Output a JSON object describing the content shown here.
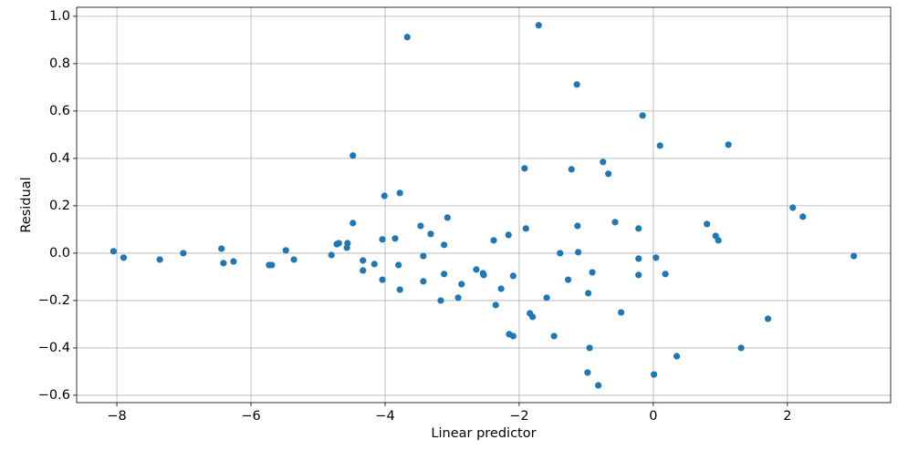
{
  "chart_data": {
    "type": "scatter",
    "x_label": "Linear predictor",
    "y_label": "Residual",
    "color": "#1f77b4",
    "grid": true,
    "xlim": [
      -8.6,
      3.54
    ],
    "ylim": [
      -0.631,
      1.038
    ],
    "xticks": [
      {
        "value": -8,
        "label": "−8"
      },
      {
        "value": -6,
        "label": "−6"
      },
      {
        "value": -4,
        "label": "−4"
      },
      {
        "value": -2,
        "label": "−2"
      },
      0,
      2
    ],
    "yticks": [
      {
        "value": -0.6,
        "label": "−0.6"
      },
      {
        "value": -0.4,
        "label": "−0.4"
      },
      {
        "value": -0.2,
        "label": "−0.2"
      },
      {
        "value": 0,
        "label": "0.0"
      },
      0.2,
      0.4,
      0.6,
      0.8,
      {
        "value": 1,
        "label": "1.0"
      }
    ],
    "x": [
      -8.05,
      -7.9,
      -7.36,
      -7.01,
      -6.44,
      -6.41,
      -6.26,
      -5.73,
      -5.69,
      -5.48,
      -5.36,
      -4.8,
      -4.72,
      -4.69,
      -4.57,
      -4.56,
      -4.48,
      -4.48,
      -4.33,
      -4.33,
      -4.16,
      -4.04,
      -4.04,
      -4.01,
      -3.85,
      -3.8,
      -3.78,
      -3.78,
      -3.67,
      -3.47,
      -3.43,
      -3.43,
      -3.32,
      -3.17,
      -3.12,
      -3.12,
      -3.07,
      -2.91,
      -2.86,
      -2.64,
      -2.54,
      -2.53,
      -2.38,
      -2.35,
      -2.27,
      -2.16,
      -2.15,
      -2.09,
      -2.09,
      -1.92,
      -1.9,
      -1.84,
      -1.8,
      -1.71,
      -1.59,
      -1.48,
      -1.39,
      -1.27,
      -1.22,
      -1.14,
      -1.13,
      -1.12,
      -0.98,
      -0.97,
      -0.95,
      -0.91,
      -0.82,
      -0.75,
      -0.67,
      -0.57,
      -0.48,
      -0.22,
      -0.22,
      -0.22,
      -0.16,
      0.01,
      0.04,
      0.1,
      0.18,
      0.35,
      0.8,
      0.93,
      0.97,
      1.12,
      1.31,
      1.71,
      2.08,
      2.23,
      2.99
    ],
    "values": [
      0.008,
      -0.019,
      -0.027,
      0.0,
      0.019,
      -0.042,
      -0.035,
      -0.05,
      -0.05,
      0.012,
      -0.027,
      -0.008,
      0.038,
      0.042,
      0.023,
      0.042,
      0.412,
      0.127,
      -0.031,
      -0.073,
      -0.046,
      0.058,
      -0.112,
      0.242,
      0.062,
      -0.05,
      0.254,
      -0.154,
      0.912,
      0.115,
      -0.012,
      -0.119,
      0.081,
      -0.2,
      0.035,
      -0.088,
      0.15,
      -0.188,
      -0.131,
      -0.069,
      -0.085,
      -0.092,
      0.054,
      -0.219,
      -0.15,
      0.077,
      -0.342,
      -0.35,
      -0.096,
      0.358,
      0.104,
      -0.254,
      -0.269,
      0.962,
      -0.188,
      -0.35,
      0.0,
      -0.112,
      0.354,
      0.712,
      0.115,
      0.004,
      -0.504,
      -0.169,
      -0.4,
      -0.081,
      -0.558,
      0.385,
      0.335,
      0.131,
      -0.25,
      0.104,
      -0.023,
      -0.092,
      0.581,
      -0.512,
      -0.019,
      0.454,
      -0.088,
      -0.435,
      0.123,
      0.073,
      0.054,
      0.458,
      -0.4,
      -0.277,
      0.192,
      0.154,
      -0.012
    ]
  }
}
